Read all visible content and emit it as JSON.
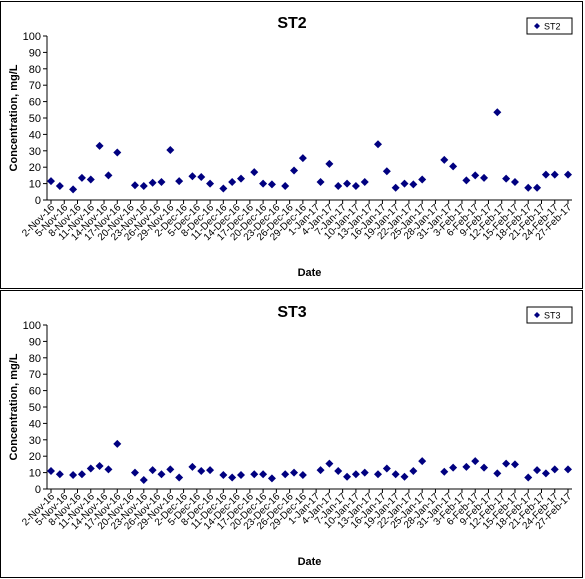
{
  "chart_data": [
    {
      "type": "scatter",
      "title": "ST2",
      "xlabel": "Date",
      "ylabel": "Concentration, mg/L",
      "ylim": [
        0,
        100
      ],
      "ytick_step": 10,
      "grid": false,
      "legend": "top-right",
      "marker_color": "#000080",
      "x_tick_labels": [
        "2-Nov-16",
        "5-Nov-16",
        "8-Nov-16",
        "11-Nov-16",
        "14-Nov-16",
        "17-Nov-16",
        "20-Nov-16",
        "23-Nov-16",
        "26-Nov-16",
        "29-Nov-16",
        "2-Dec-16",
        "5-Dec-16",
        "8-Dec-16",
        "11-Dec-16",
        "14-Dec-16",
        "17-Dec-16",
        "20-Dec-16",
        "23-Dec-16",
        "26-Dec-16",
        "29-Dec-16",
        "1-Jan-17",
        "4-Jan-17",
        "7-Jan-17",
        "10-Jan-17",
        "13-Jan-17",
        "16-Jan-17",
        "19-Jan-17",
        "22-Jan-17",
        "25-Jan-17",
        "28-Jan-17",
        "31-Jan-17",
        "3-Feb-17",
        "6-Feb-17",
        "9-Feb-17",
        "12-Feb-17",
        "15-Feb-17",
        "18-Feb-17",
        "21-Feb-17",
        "24-Feb-17",
        "27-Feb-17"
      ],
      "series": [
        {
          "name": "ST2",
          "x": [
            "2-Nov-16",
            "4-Nov-16",
            "7-Nov-16",
            "9-Nov-16",
            "11-Nov-16",
            "13-Nov-16",
            "15-Nov-16",
            "17-Nov-16",
            "21-Nov-16",
            "23-Nov-16",
            "25-Nov-16",
            "27-Nov-16",
            "29-Nov-16",
            "1-Dec-16",
            "4-Dec-16",
            "6-Dec-16",
            "8-Dec-16",
            "11-Dec-16",
            "13-Dec-16",
            "15-Dec-16",
            "18-Dec-16",
            "20-Dec-16",
            "22-Dec-16",
            "25-Dec-16",
            "27-Dec-16",
            "29-Dec-16",
            "2-Jan-17",
            "4-Jan-17",
            "6-Jan-17",
            "8-Jan-17",
            "10-Jan-17",
            "12-Jan-17",
            "15-Jan-17",
            "17-Jan-17",
            "19-Jan-17",
            "21-Jan-17",
            "23-Jan-17",
            "25-Jan-17",
            "30-Jan-17",
            "1-Feb-17",
            "4-Feb-17",
            "6-Feb-17",
            "8-Feb-17",
            "11-Feb-17",
            "13-Feb-17",
            "15-Feb-17",
            "18-Feb-17",
            "20-Feb-17",
            "22-Feb-17",
            "24-Feb-17",
            "27-Feb-17"
          ],
          "y": [
            11.5,
            8.5,
            6.5,
            13.5,
            12.5,
            33,
            15,
            29,
            9,
            8.5,
            10.5,
            11,
            30.5,
            11.5,
            14.5,
            14,
            10,
            7,
            11,
            13,
            17,
            10,
            9.5,
            8.5,
            18,
            25.5,
            11,
            22,
            8.5,
            10,
            8.5,
            11,
            34,
            17.5,
            7.5,
            10,
            9.5,
            12.5,
            24.5,
            20.5,
            12,
            15,
            13.5,
            53.5,
            13,
            11,
            7.5,
            7.5,
            15.5,
            15.5,
            15.5
          ]
        }
      ]
    },
    {
      "type": "scatter",
      "title": "ST3",
      "xlabel": "Date",
      "ylabel": "Concentration, mg/L",
      "ylim": [
        0,
        100
      ],
      "ytick_step": 10,
      "grid": false,
      "legend": "top-right",
      "marker_color": "#000080",
      "x_tick_labels": [
        "2-Nov-16",
        "5-Nov-16",
        "8-Nov-16",
        "11-Nov-16",
        "14-Nov-16",
        "17-Nov-16",
        "20-Nov-16",
        "23-Nov-16",
        "26-Nov-16",
        "29-Nov-16",
        "2-Dec-16",
        "5-Dec-16",
        "8-Dec-16",
        "11-Dec-16",
        "14-Dec-16",
        "17-Dec-16",
        "20-Dec-16",
        "23-Dec-16",
        "26-Dec-16",
        "29-Dec-16",
        "1-Jan-17",
        "4-Jan-17",
        "7-Jan-17",
        "10-Jan-17",
        "13-Jan-17",
        "16-Jan-17",
        "19-Jan-17",
        "22-Jan-17",
        "25-Jan-17",
        "28-Jan-17",
        "31-Jan-17",
        "3-Feb-17",
        "6-Feb-17",
        "9-Feb-17",
        "12-Feb-17",
        "15-Feb-17",
        "18-Feb-17",
        "21-Feb-17",
        "24-Feb-17",
        "27-Feb-17"
      ],
      "series": [
        {
          "name": "ST3",
          "x": [
            "2-Nov-16",
            "4-Nov-16",
            "7-Nov-16",
            "9-Nov-16",
            "11-Nov-16",
            "13-Nov-16",
            "15-Nov-16",
            "17-Nov-16",
            "21-Nov-16",
            "23-Nov-16",
            "25-Nov-16",
            "27-Nov-16",
            "29-Nov-16",
            "1-Dec-16",
            "4-Dec-16",
            "6-Dec-16",
            "8-Dec-16",
            "11-Dec-16",
            "13-Dec-16",
            "15-Dec-16",
            "18-Dec-16",
            "20-Dec-16",
            "22-Dec-16",
            "25-Dec-16",
            "27-Dec-16",
            "29-Dec-16",
            "2-Jan-17",
            "4-Jan-17",
            "6-Jan-17",
            "8-Jan-17",
            "10-Jan-17",
            "12-Jan-17",
            "15-Jan-17",
            "17-Jan-17",
            "19-Jan-17",
            "21-Jan-17",
            "23-Jan-17",
            "25-Jan-17",
            "30-Jan-17",
            "1-Feb-17",
            "4-Feb-17",
            "6-Feb-17",
            "8-Feb-17",
            "11-Feb-17",
            "13-Feb-17",
            "15-Feb-17",
            "18-Feb-17",
            "20-Feb-17",
            "22-Feb-17",
            "24-Feb-17",
            "27-Feb-17"
          ],
          "y": [
            11,
            9,
            8.5,
            9,
            12.5,
            14,
            12,
            27.5,
            10,
            5.5,
            11.5,
            9,
            12,
            7,
            13.5,
            11,
            11.5,
            8.5,
            7,
            8.5,
            9,
            9,
            6.5,
            9,
            10,
            8.5,
            11.5,
            15.5,
            11,
            7.5,
            9,
            10,
            9,
            12.5,
            9,
            7.5,
            11,
            17,
            10.5,
            13,
            13.5,
            17,
            13,
            9.5,
            15.5,
            15,
            7,
            11.5,
            9.5,
            12,
            12
          ]
        }
      ]
    }
  ]
}
